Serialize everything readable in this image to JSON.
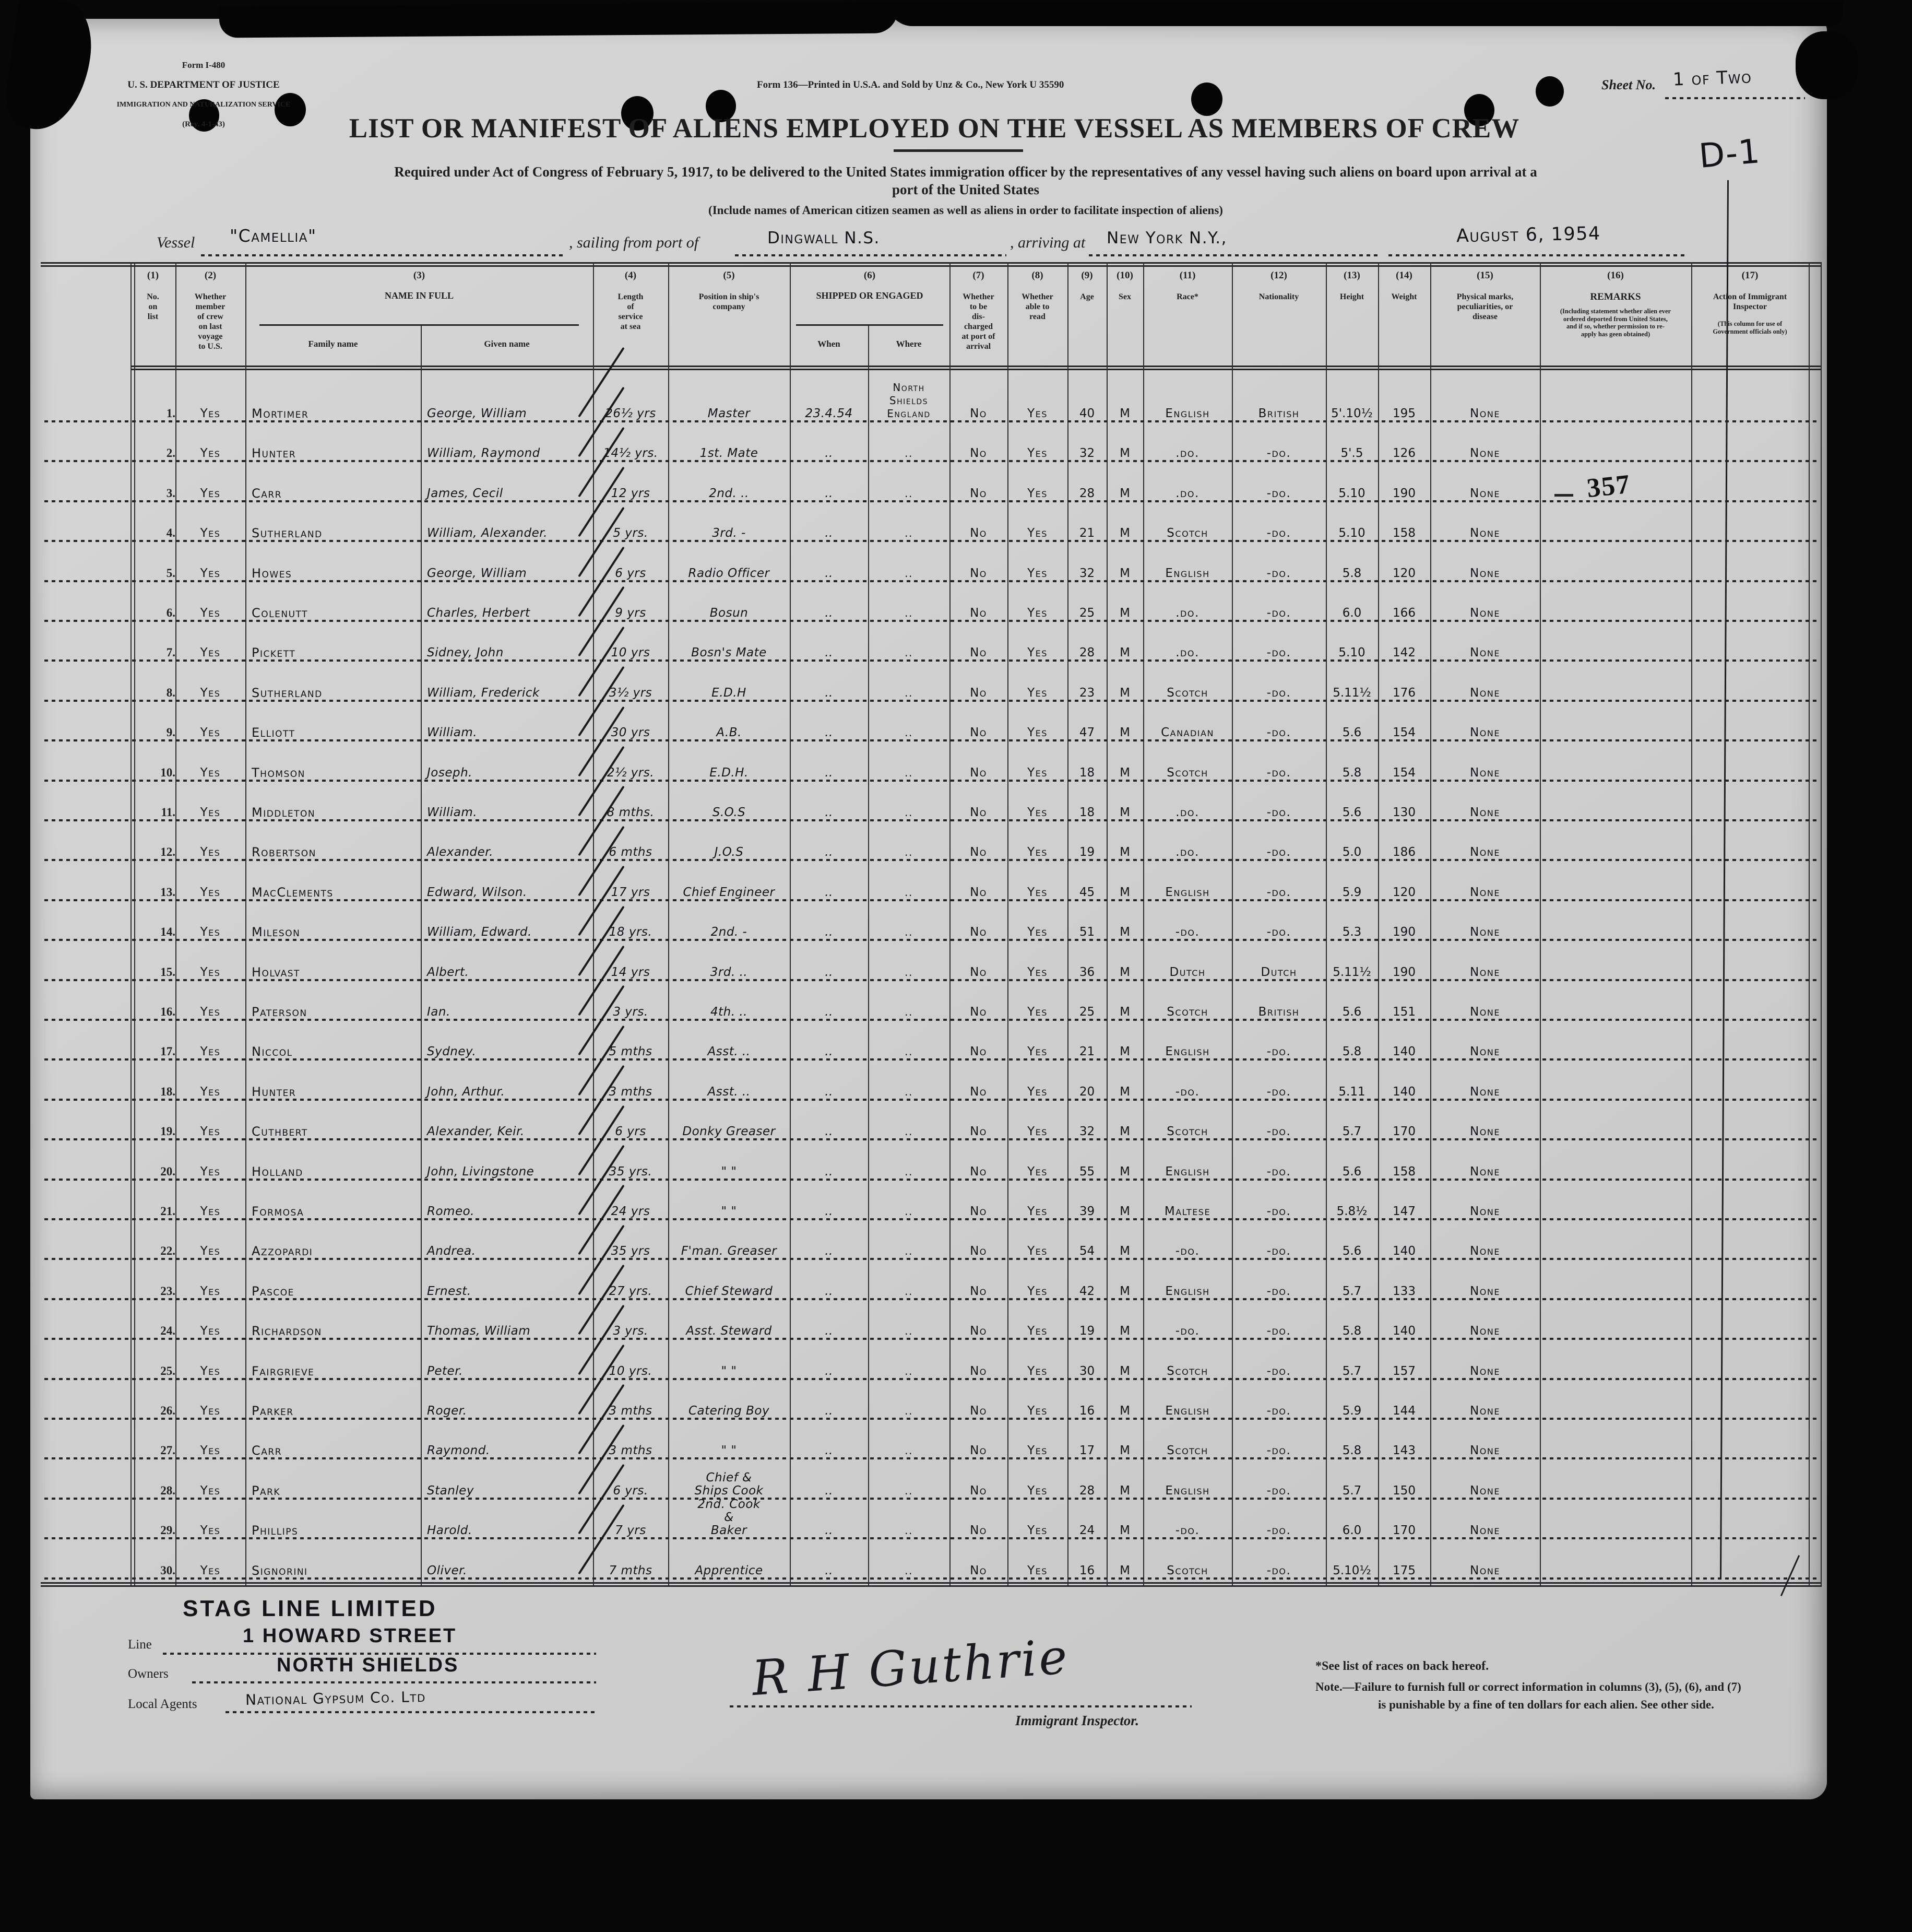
{
  "form": {
    "agency_lines": [
      "Form I-480",
      "U. S. DEPARTMENT OF JUSTICE",
      "IMMIGRATION AND NATURALIZATION SERVICE",
      "(Rev. 4-1-43)"
    ],
    "printer_line": "Form 136—Printed in U.S.A. and Sold by Unz & Co., New York   U 35590",
    "sheet_label": "Sheet No.",
    "sheet_value": "1 of Two",
    "title": "LIST OR MANIFEST OF ALIENS EMPLOYED ON THE VESSEL AS MEMBERS OF CREW",
    "subtitle1": "Required under Act of Congress of February 5, 1917, to be delivered to the United States immigration officer by the representatives of any vessel having such aliens on board upon arrival at a\nport of the United States",
    "subtitle2": "(Include names of American citizen seamen as well as aliens in order to facilitate inspection of aliens)",
    "vessel_label": "Vessel",
    "vessel_value": "\"Camellia\"",
    "sailing_label": ", sailing from port of",
    "sailing_value": "Dingwall  N.S.",
    "arriving_label": ", arriving at",
    "arriving_value": "New York   N.Y.,",
    "date_value": "August 6, 1954"
  },
  "table": {
    "header_cols": [
      {
        "id": "no",
        "num": "(1)",
        "label": "No.\non\nlist"
      },
      {
        "id": "member",
        "num": "(2)",
        "label": "Whether\nmember\nof crew\non last\nvoyage\nto U.S."
      },
      {
        "id": "name",
        "num": "(3)",
        "label": "NAME IN FULL",
        "subs": [
          "Family name",
          "Given name"
        ]
      },
      {
        "id": "service",
        "num": "(4)",
        "label": "Length\nof\nservice\nat sea"
      },
      {
        "id": "position",
        "num": "(5)",
        "label": "Position in ship's\ncompany"
      },
      {
        "id": "shipped",
        "num": "(6)",
        "label": "SHIPPED OR ENGAGED",
        "subs": [
          "When",
          "Where"
        ]
      },
      {
        "id": "disch",
        "num": "(7)",
        "label": "Whether\nto be\ndis-\ncharged\nat port of\narrival"
      },
      {
        "id": "read",
        "num": "(8)",
        "label": "Whether\nable to\nread"
      },
      {
        "id": "age",
        "num": "(9)",
        "label": "Age"
      },
      {
        "id": "sex",
        "num": "(10)",
        "label": "Sex"
      },
      {
        "id": "race",
        "num": "(11)",
        "label": "Race*"
      },
      {
        "id": "nat",
        "num": "(12)",
        "label": "Nationality"
      },
      {
        "id": "height",
        "num": "(13)",
        "label": "Height"
      },
      {
        "id": "weight",
        "num": "(14)",
        "label": "Weight"
      },
      {
        "id": "marks",
        "num": "(15)",
        "label": "Physical marks,\npeculiarities, or\ndisease"
      },
      {
        "id": "remarks",
        "num": "(16)",
        "label": "REMARKS",
        "note": "(Including statement whether alien ever\nordered deported from United States,\nand if so, whether permission to re-\napply has geen obtained)"
      },
      {
        "id": "action",
        "num": "(17)",
        "label": "Action of Immigrant\nInspector",
        "note": "(This column for use of\nGovernment officials only)"
      }
    ],
    "rows": [
      {
        "no": "1",
        "member": "Yes",
        "family": "Mortimer",
        "given": "George, William",
        "service": "26½ yrs",
        "position": "Master",
        "when": "23.4.54",
        "where": "North\nShields\nEngland",
        "disch": "No",
        "read": "Yes",
        "age": "40",
        "sex": "M",
        "race": "English",
        "nat": "British",
        "height": "5'.10½",
        "weight": "195",
        "marks": "None"
      },
      {
        "no": "2",
        "member": "Yes",
        "family": "Hunter",
        "given": "William, Raymond",
        "service": "14½ yrs.",
        "position": "1st. Mate",
        "when": "..",
        "where": "..",
        "disch": "No",
        "read": "Yes",
        "age": "32",
        "sex": "M",
        "race": ".do.",
        "nat": "-do.",
        "height": "5'.5",
        "weight": "126",
        "marks": "None"
      },
      {
        "no": "3",
        "member": "Yes",
        "family": "Carr",
        "given": "James, Cecil",
        "service": "12 yrs",
        "position": "2nd. ..",
        "when": "..",
        "where": "..",
        "disch": "No",
        "read": "Yes",
        "age": "28",
        "sex": "M",
        "race": ".do.",
        "nat": "-do.",
        "height": "5.10",
        "weight": "190",
        "marks": "None"
      },
      {
        "no": "4",
        "member": "Yes",
        "family": "Sutherland",
        "given": "William, Alexander.",
        "service": "5 yrs.",
        "position": "3rd. -",
        "when": "..",
        "where": "..",
        "disch": "No",
        "read": "Yes",
        "age": "21",
        "sex": "M",
        "race": "Scotch",
        "nat": "-do.",
        "height": "5.10",
        "weight": "158",
        "marks": "None"
      },
      {
        "no": "5",
        "member": "Yes",
        "family": "Howes",
        "given": "George, William",
        "service": "6 yrs",
        "position": "Radio Officer",
        "when": "..",
        "where": "..",
        "disch": "No",
        "read": "Yes",
        "age": "32",
        "sex": "M",
        "race": "English",
        "nat": "-do.",
        "height": "5.8",
        "weight": "120",
        "marks": "None"
      },
      {
        "no": "6",
        "member": "Yes",
        "family": "Colenutt",
        "given": "Charles, Herbert",
        "service": "9 yrs",
        "position": "Bosun",
        "when": "..",
        "where": "..",
        "disch": "No",
        "read": "Yes",
        "age": "25",
        "sex": "M",
        "race": ".do.",
        "nat": "-do.",
        "height": "6.0",
        "weight": "166",
        "marks": "None"
      },
      {
        "no": "7",
        "member": "Yes",
        "family": "Pickett",
        "given": "Sidney, John",
        "service": "10 yrs",
        "position": "Bosn's Mate",
        "when": "..",
        "where": "..",
        "disch": "No",
        "read": "Yes",
        "age": "28",
        "sex": "M",
        "race": ".do.",
        "nat": "-do.",
        "height": "5.10",
        "weight": "142",
        "marks": "None"
      },
      {
        "no": "8",
        "member": "Yes",
        "family": "Sutherland",
        "given": "William, Frederick",
        "service": "3½ yrs",
        "position": "E.D.H",
        "when": "..",
        "where": "..",
        "disch": "No",
        "read": "Yes",
        "age": "23",
        "sex": "M",
        "race": "Scotch",
        "nat": "-do.",
        "height": "5.11½",
        "weight": "176",
        "marks": "None"
      },
      {
        "no": "9",
        "member": "Yes",
        "family": "Elliott",
        "given": "William.",
        "service": "30 yrs",
        "position": "A.B.",
        "when": "..",
        "where": "..",
        "disch": "No",
        "read": "Yes",
        "age": "47",
        "sex": "M",
        "race": "Canadian",
        "nat": "-do.",
        "height": "5.6",
        "weight": "154",
        "marks": "None"
      },
      {
        "no": "10",
        "member": "Yes",
        "family": "Thomson",
        "given": "Joseph.",
        "service": "2½ yrs.",
        "position": "E.D.H.",
        "when": "..",
        "where": "..",
        "disch": "No",
        "read": "Yes",
        "age": "18",
        "sex": "M",
        "race": "Scotch",
        "nat": "-do.",
        "height": "5.8",
        "weight": "154",
        "marks": "None"
      },
      {
        "no": "11",
        "member": "Yes",
        "family": "Middleton",
        "given": "William.",
        "service": "8 mths.",
        "position": "S.O.S",
        "when": "..",
        "where": "..",
        "disch": "No",
        "read": "Yes",
        "age": "18",
        "sex": "M",
        "race": ".do.",
        "nat": "-do.",
        "height": "5.6",
        "weight": "130",
        "marks": "None"
      },
      {
        "no": "12",
        "member": "Yes",
        "family": "Robertson",
        "given": "Alexander.",
        "service": "6 mths",
        "position": "J.O.S",
        "when": "..",
        "where": "..",
        "disch": "No",
        "read": "Yes",
        "age": "19",
        "sex": "M",
        "race": ".do.",
        "nat": "-do.",
        "height": "5.0",
        "weight": "186",
        "marks": "None"
      },
      {
        "no": "13",
        "member": "Yes",
        "family": "MacClements",
        "given": "Edward, Wilson.",
        "service": "17 yrs",
        "position": "Chief Engineer",
        "when": "..",
        "where": "..",
        "disch": "No",
        "read": "Yes",
        "age": "45",
        "sex": "M",
        "race": "English",
        "nat": "-do.",
        "height": "5.9",
        "weight": "120",
        "marks": "None"
      },
      {
        "no": "14",
        "member": "Yes",
        "family": "Mileson",
        "given": "William, Edward.",
        "service": "18 yrs.",
        "position": "2nd. -",
        "when": "..",
        "where": "..",
        "disch": "No",
        "read": "Yes",
        "age": "51",
        "sex": "M",
        "race": "-do.",
        "nat": "-do.",
        "height": "5.3",
        "weight": "190",
        "marks": "None"
      },
      {
        "no": "15",
        "member": "Yes",
        "family": "Holvast",
        "given": "Albert.",
        "service": "14 yrs",
        "position": "3rd. ..",
        "when": "..",
        "where": "..",
        "disch": "No",
        "read": "Yes",
        "age": "36",
        "sex": "M",
        "race": "Dutch",
        "nat": "Dutch",
        "height": "5.11½",
        "weight": "190",
        "marks": "None"
      },
      {
        "no": "16",
        "member": "Yes",
        "family": "Paterson",
        "given": "Ian.",
        "service": "3 yrs.",
        "position": "4th. ..",
        "when": "..",
        "where": "..",
        "disch": "No",
        "read": "Yes",
        "age": "25",
        "sex": "M",
        "race": "Scotch",
        "nat": "British",
        "height": "5.6",
        "weight": "151",
        "marks": "None"
      },
      {
        "no": "17",
        "member": "Yes",
        "family": "Niccol",
        "given": "Sydney.",
        "service": "5 mths",
        "position": "Asst. ..",
        "when": "..",
        "where": "..",
        "disch": "No",
        "read": "Yes",
        "age": "21",
        "sex": "M",
        "race": "English",
        "nat": "-do.",
        "height": "5.8",
        "weight": "140",
        "marks": "None"
      },
      {
        "no": "18",
        "member": "Yes",
        "family": "Hunter",
        "given": "John, Arthur.",
        "service": "3 mths",
        "position": "Asst. ..",
        "when": "..",
        "where": "..",
        "disch": "No",
        "read": "Yes",
        "age": "20",
        "sex": "M",
        "race": "-do.",
        "nat": "-do.",
        "height": "5.11",
        "weight": "140",
        "marks": "None"
      },
      {
        "no": "19",
        "member": "Yes",
        "family": "Cuthbert",
        "given": "Alexander, Keir.",
        "service": "6 yrs",
        "position": "Donky Greaser",
        "when": "..",
        "where": "..",
        "disch": "No",
        "read": "Yes",
        "age": "32",
        "sex": "M",
        "race": "Scotch",
        "nat": "-do.",
        "height": "5.7",
        "weight": "170",
        "marks": "None"
      },
      {
        "no": "20",
        "member": "Yes",
        "family": "Holland",
        "given": "John, Livingstone",
        "service": "35 yrs.",
        "position": "\"      \"",
        "when": "..",
        "where": "..",
        "disch": "No",
        "read": "Yes",
        "age": "55",
        "sex": "M",
        "race": "English",
        "nat": "-do.",
        "height": "5.6",
        "weight": "158",
        "marks": "None"
      },
      {
        "no": "21",
        "member": "Yes",
        "family": "Formosa",
        "given": "Romeo.",
        "service": "24 yrs",
        "position": "\"      \"",
        "when": "..",
        "where": "..",
        "disch": "No",
        "read": "Yes",
        "age": "39",
        "sex": "M",
        "race": "Maltese",
        "nat": "-do.",
        "height": "5.8½",
        "weight": "147",
        "marks": "None"
      },
      {
        "no": "22",
        "member": "Yes",
        "family": "Azzopardi",
        "given": "Andrea.",
        "service": "35 yrs",
        "position": "F'man. Greaser",
        "when": "..",
        "where": "..",
        "disch": "No",
        "read": "Yes",
        "age": "54",
        "sex": "M",
        "race": "-do.",
        "nat": "-do.",
        "height": "5.6",
        "weight": "140",
        "marks": "None"
      },
      {
        "no": "23",
        "member": "Yes",
        "family": "Pascoe",
        "given": "Ernest.",
        "service": "27 yrs.",
        "position": "Chief Steward",
        "when": "..",
        "where": "..",
        "disch": "No",
        "read": "Yes",
        "age": "42",
        "sex": "M",
        "race": "English",
        "nat": "-do.",
        "height": "5.7",
        "weight": "133",
        "marks": "None"
      },
      {
        "no": "24",
        "member": "Yes",
        "family": "Richardson",
        "given": "Thomas, William",
        "service": "3 yrs.",
        "position": "Asst. Steward",
        "when": "..",
        "where": "..",
        "disch": "No",
        "read": "Yes",
        "age": "19",
        "sex": "M",
        "race": "-do.",
        "nat": "-do.",
        "height": "5.8",
        "weight": "140",
        "marks": "None"
      },
      {
        "no": "25",
        "member": "Yes",
        "family": "Fairgrieve",
        "given": "Peter.",
        "service": "10 yrs.",
        "position": "\"      \"",
        "when": "..",
        "where": "..",
        "disch": "No",
        "read": "Yes",
        "age": "30",
        "sex": "M",
        "race": "Scotch",
        "nat": "-do.",
        "height": "5.7",
        "weight": "157",
        "marks": "None"
      },
      {
        "no": "26",
        "member": "Yes",
        "family": "Parker",
        "given": "Roger.",
        "service": "3 mths",
        "position": "Catering Boy",
        "when": "..",
        "where": "..",
        "disch": "No",
        "read": "Yes",
        "age": "16",
        "sex": "M",
        "race": "English",
        "nat": "-do.",
        "height": "5.9",
        "weight": "144",
        "marks": "None"
      },
      {
        "no": "27",
        "member": "Yes",
        "family": "Carr",
        "given": "Raymond.",
        "service": "3 mths",
        "position": "\"      \"",
        "when": "..",
        "where": "..",
        "disch": "No",
        "read": "Yes",
        "age": "17",
        "sex": "M",
        "race": "Scotch",
        "nat": "-do.",
        "height": "5.8",
        "weight": "143",
        "marks": "None"
      },
      {
        "no": "28",
        "member": "Yes",
        "family": "Park",
        "given": "Stanley",
        "service": "6 yrs.",
        "position": "Chief &\nShips Cook",
        "when": "..",
        "where": "..",
        "disch": "No",
        "read": "Yes",
        "age": "28",
        "sex": "M",
        "race": "English",
        "nat": "-do.",
        "height": "5.7",
        "weight": "150",
        "marks": "None"
      },
      {
        "no": "29",
        "member": "Yes",
        "family": "Phillips",
        "given": "Harold.",
        "service": "7 yrs",
        "position": "2nd. Cook\n&\nBaker",
        "when": "..",
        "where": "..",
        "disch": "No",
        "read": "Yes",
        "age": "24",
        "sex": "M",
        "race": "-do.",
        "nat": "-do.",
        "height": "6.0",
        "weight": "170",
        "marks": "None"
      },
      {
        "no": "30",
        "member": "Yes",
        "family": "Signorini",
        "given": "Oliver.",
        "service": "7 mths",
        "position": "Apprentice",
        "when": "..",
        "where": "..",
        "disch": "No",
        "read": "Yes",
        "age": "16",
        "sex": "M",
        "race": "Scotch",
        "nat": "-do.",
        "height": "5.10½",
        "weight": "175",
        "marks": "None"
      }
    ]
  },
  "annotations": {
    "action_d1": "D-1",
    "stamp_357": "357"
  },
  "footer": {
    "company_stamp": "STAG LINE LIMITED",
    "line_label": "Line",
    "line_value": "1 HOWARD STREET",
    "owners_label": "Owners",
    "owners_value": "NORTH SHIELDS",
    "agents_label": "Local Agents",
    "agents_value": "National Gypsum Co. Ltd",
    "signature": "R H Guthrie",
    "inspector_label": "Immigrant Inspector.",
    "note_races": "*See list of races on back hereof.",
    "note_failure1": "Note.—Failure to furnish full or correct information in columns (3), (5), (6), and (7)",
    "note_failure2": "is punishable by a fine of ten dollars for each alien.   See other side."
  }
}
